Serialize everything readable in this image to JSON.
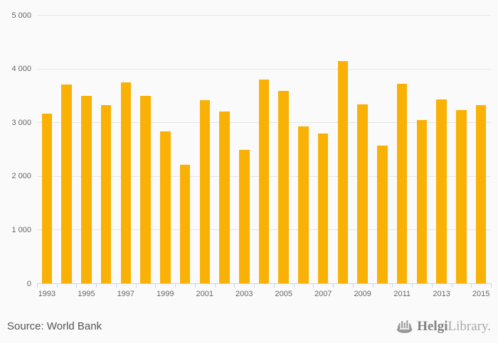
{
  "chart_data": {
    "type": "bar",
    "title": "",
    "xlabel": "",
    "ylabel": "",
    "categories": [
      "1993",
      "1994",
      "1995",
      "1996",
      "1997",
      "1998",
      "1999",
      "2000",
      "2001",
      "2002",
      "2003",
      "2004",
      "2005",
      "2006",
      "2007",
      "2008",
      "2009",
      "2010",
      "2011",
      "2012",
      "2013",
      "2014",
      "2015"
    ],
    "values": [
      3160,
      3700,
      3490,
      3320,
      3740,
      3490,
      2830,
      2210,
      3410,
      3200,
      2490,
      3790,
      3580,
      2920,
      2790,
      4140,
      3330,
      2560,
      3720,
      3040,
      3420,
      3230,
      3320
    ],
    "ylim": [
      0,
      5000
    ],
    "ytick_step": 1000,
    "ytick_labels": [
      "0",
      "1 000",
      "2 000",
      "3 000",
      "4 000",
      "5 000"
    ],
    "x_label_every": 2,
    "grid": true,
    "legend": "none",
    "bar_color": "#F9B106",
    "grid_color": "#E6E6E6",
    "axis_color": "#CCD6EB",
    "label_color": "#666666"
  },
  "footer": {
    "source_text": "Source: World Bank",
    "logo": {
      "icon": "viking-ship-icon",
      "brand_primary": "Helgi",
      "brand_secondary": "Library."
    }
  }
}
